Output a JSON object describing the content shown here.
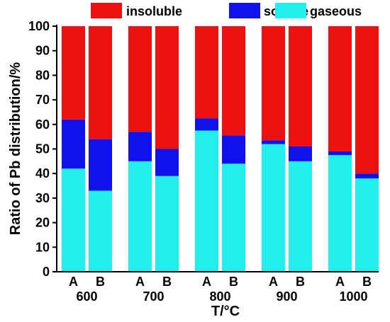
{
  "chart_data": {
    "type": "bar",
    "stacked": true,
    "ylabel": "Ratio of Pb distribution/%",
    "xlabel": "T/°C",
    "ylim": [
      0,
      100
    ],
    "yticks": [
      0,
      10,
      20,
      30,
      40,
      50,
      60,
      70,
      80,
      90,
      100
    ],
    "groups": [
      "600",
      "700",
      "800",
      "900",
      "1000"
    ],
    "subcategories": [
      "A",
      "B"
    ],
    "bars": [
      {
        "group": "600",
        "sub": "A",
        "gaseous": 42,
        "soluble": 20,
        "insoluble": 38
      },
      {
        "group": "600",
        "sub": "B",
        "gaseous": 33,
        "soluble": 21,
        "insoluble": 46
      },
      {
        "group": "700",
        "sub": "A",
        "gaseous": 45,
        "soluble": 12,
        "insoluble": 43
      },
      {
        "group": "700",
        "sub": "B",
        "gaseous": 39,
        "soluble": 11,
        "insoluble": 50
      },
      {
        "group": "800",
        "sub": "A",
        "gaseous": 57.5,
        "soluble": 5,
        "insoluble": 37.5
      },
      {
        "group": "800",
        "sub": "B",
        "gaseous": 44,
        "soluble": 11.5,
        "insoluble": 44.5
      },
      {
        "group": "900",
        "sub": "A",
        "gaseous": 52,
        "soluble": 1.5,
        "insoluble": 46.5
      },
      {
        "group": "900",
        "sub": "B",
        "gaseous": 45,
        "soluble": 6,
        "insoluble": 49
      },
      {
        "group": "1000",
        "sub": "A",
        "gaseous": 47.5,
        "soluble": 1.5,
        "insoluble": 51
      },
      {
        "group": "1000",
        "sub": "B",
        "gaseous": 38,
        "soluble": 2,
        "insoluble": 60
      }
    ],
    "series": [
      {
        "name": "insoluble",
        "color": "#ee1111"
      },
      {
        "name": "soluble",
        "color": "#1111ee"
      },
      {
        "name": "gaseous",
        "color": "#22eeee"
      }
    ],
    "legend_position": "top",
    "grid": false
  }
}
